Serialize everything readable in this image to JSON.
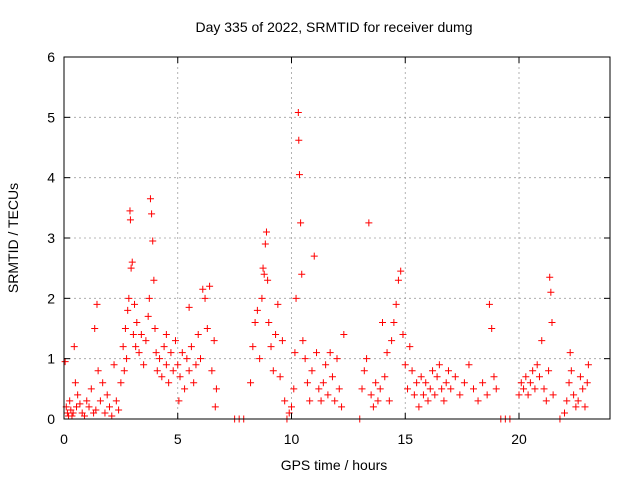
{
  "chart_data": {
    "type": "scatter",
    "title": "Day 335 of 2022, SRMTID for receiver dumg",
    "xlabel": "GPS time / hours",
    "ylabel": "SRMTID / TECUs",
    "xlim": [
      0,
      24
    ],
    "ylim": [
      0,
      6
    ],
    "xticks": [
      0,
      5,
      10,
      15,
      20
    ],
    "yticks": [
      0,
      1,
      2,
      3,
      4,
      5,
      6
    ],
    "grid": true,
    "marker": "+",
    "color": "#ff0000",
    "series": [
      {
        "name": "SRMTID",
        "points": [
          [
            0.05,
            0.95
          ],
          [
            0.1,
            0.2
          ],
          [
            0.15,
            0.1
          ],
          [
            0.2,
            0.05
          ],
          [
            0.25,
            0.3
          ],
          [
            0.3,
            0.15
          ],
          [
            0.35,
            0.05
          ],
          [
            0.4,
            0.1
          ],
          [
            0.45,
            1.2
          ],
          [
            0.5,
            0.6
          ],
          [
            0.55,
            0.2
          ],
          [
            0.6,
            0.4
          ],
          [
            0.7,
            0.25
          ],
          [
            0.8,
            0.1
          ],
          [
            0.9,
            0.05
          ],
          [
            1.0,
            0.3
          ],
          [
            1.1,
            0.2
          ],
          [
            1.2,
            0.5
          ],
          [
            1.3,
            0.1
          ],
          [
            1.4,
            0.15
          ],
          [
            1.5,
            0.8
          ],
          [
            1.6,
            0.3
          ],
          [
            1.7,
            0.6
          ],
          [
            1.8,
            0.1
          ],
          [
            1.9,
            0.4
          ],
          [
            2.0,
            0.2
          ],
          [
            2.1,
            0.05
          ],
          [
            2.2,
            0.9
          ],
          [
            2.3,
            0.3
          ],
          [
            2.4,
            0.15
          ],
          [
            2.5,
            0.6
          ],
          [
            1.35,
            1.5
          ],
          [
            1.45,
            1.9
          ],
          [
            2.6,
            1.2
          ],
          [
            2.65,
            0.8
          ],
          [
            2.7,
            1.5
          ],
          [
            2.75,
            1.0
          ],
          [
            2.8,
            1.8
          ],
          [
            2.85,
            2.0
          ],
          [
            2.9,
            3.45
          ],
          [
            2.92,
            3.3
          ],
          [
            2.95,
            2.5
          ],
          [
            3.0,
            2.6
          ],
          [
            3.05,
            1.4
          ],
          [
            3.1,
            1.9
          ],
          [
            3.15,
            1.2
          ],
          [
            3.2,
            1.6
          ],
          [
            3.3,
            1.1
          ],
          [
            3.4,
            1.4
          ],
          [
            3.5,
            0.9
          ],
          [
            3.6,
            1.3
          ],
          [
            3.7,
            1.7
          ],
          [
            3.75,
            2.0
          ],
          [
            3.8,
            3.65
          ],
          [
            3.85,
            3.4
          ],
          [
            3.9,
            2.95
          ],
          [
            3.95,
            2.3
          ],
          [
            4.0,
            1.5
          ],
          [
            4.05,
            1.1
          ],
          [
            4.1,
            0.8
          ],
          [
            4.2,
            1.0
          ],
          [
            4.3,
            0.7
          ],
          [
            4.4,
            1.2
          ],
          [
            4.5,
            0.9
          ],
          [
            4.6,
            0.6
          ],
          [
            4.7,
            1.1
          ],
          [
            4.8,
            0.8
          ],
          [
            4.9,
            1.3
          ],
          [
            5.0,
            0.9
          ],
          [
            5.1,
            0.7
          ],
          [
            5.2,
            1.1
          ],
          [
            5.3,
            0.5
          ],
          [
            5.4,
            1.0
          ],
          [
            5.5,
            0.8
          ],
          [
            5.6,
            1.2
          ],
          [
            5.7,
            0.6
          ],
          [
            5.8,
            0.9
          ],
          [
            5.9,
            1.4
          ],
          [
            6.0,
            1.0
          ],
          [
            6.1,
            2.15
          ],
          [
            6.2,
            2.0
          ],
          [
            6.3,
            1.5
          ],
          [
            6.4,
            2.2
          ],
          [
            6.5,
            0.8
          ],
          [
            6.6,
            1.3
          ],
          [
            6.65,
            0.2
          ],
          [
            6.7,
            0.5
          ],
          [
            5.5,
            1.85
          ],
          [
            4.5,
            1.4
          ],
          [
            5.05,
            0.3
          ],
          [
            7.5,
            0.0
          ],
          [
            7.7,
            0.0
          ],
          [
            7.9,
            0.0
          ],
          [
            8.2,
            0.6
          ],
          [
            8.3,
            1.2
          ],
          [
            8.4,
            1.6
          ],
          [
            8.5,
            1.8
          ],
          [
            8.6,
            1.0
          ],
          [
            8.7,
            2.0
          ],
          [
            8.75,
            2.5
          ],
          [
            8.8,
            2.4
          ],
          [
            8.85,
            2.9
          ],
          [
            8.9,
            3.1
          ],
          [
            8.95,
            2.3
          ],
          [
            9.0,
            1.6
          ],
          [
            9.1,
            1.2
          ],
          [
            9.2,
            0.8
          ],
          [
            9.3,
            1.4
          ],
          [
            9.4,
            1.9
          ],
          [
            9.5,
            0.7
          ],
          [
            9.6,
            1.3
          ],
          [
            9.7,
            0.3
          ],
          [
            9.8,
            0.0
          ],
          [
            9.9,
            0.1
          ],
          [
            10.0,
            0.2
          ],
          [
            10.1,
            0.5
          ],
          [
            10.15,
            1.1
          ],
          [
            10.2,
            2.0
          ],
          [
            10.3,
            5.08
          ],
          [
            10.32,
            4.62
          ],
          [
            10.35,
            4.05
          ],
          [
            10.4,
            3.25
          ],
          [
            10.45,
            2.4
          ],
          [
            10.5,
            1.3
          ],
          [
            10.6,
            1.0
          ],
          [
            10.7,
            0.6
          ],
          [
            10.8,
            0.3
          ],
          [
            10.9,
            0.8
          ],
          [
            11.0,
            2.7
          ],
          [
            11.1,
            1.1
          ],
          [
            11.2,
            0.5
          ],
          [
            11.3,
            0.3
          ],
          [
            11.4,
            0.6
          ],
          [
            11.5,
            0.9
          ],
          [
            11.6,
            0.4
          ],
          [
            11.7,
            1.1
          ],
          [
            11.8,
            0.7
          ],
          [
            11.9,
            0.3
          ],
          [
            12.0,
            1.0
          ],
          [
            12.1,
            0.5
          ],
          [
            12.2,
            0.2
          ],
          [
            12.3,
            1.4
          ],
          [
            13.0,
            0.0
          ],
          [
            13.1,
            0.5
          ],
          [
            13.2,
            0.8
          ],
          [
            13.3,
            1.0
          ],
          [
            13.4,
            3.25
          ],
          [
            13.5,
            0.4
          ],
          [
            13.6,
            0.2
          ],
          [
            13.7,
            0.6
          ],
          [
            13.8,
            0.3
          ],
          [
            13.9,
            0.5
          ],
          [
            14.0,
            1.6
          ],
          [
            14.1,
            0.7
          ],
          [
            14.2,
            1.1
          ],
          [
            14.3,
            0.3
          ],
          [
            14.4,
            1.3
          ],
          [
            14.5,
            1.6
          ],
          [
            14.6,
            1.9
          ],
          [
            14.7,
            2.3
          ],
          [
            14.8,
            2.45
          ],
          [
            14.9,
            1.4
          ],
          [
            15.0,
            0.9
          ],
          [
            15.1,
            0.5
          ],
          [
            15.2,
            1.2
          ],
          [
            15.3,
            0.8
          ],
          [
            15.4,
            0.4
          ],
          [
            15.5,
            0.6
          ],
          [
            15.6,
            0.2
          ],
          [
            15.7,
            0.7
          ],
          [
            15.8,
            0.4
          ],
          [
            15.9,
            0.6
          ],
          [
            16.0,
            0.3
          ],
          [
            16.1,
            0.5
          ],
          [
            16.2,
            0.8
          ],
          [
            16.3,
            0.4
          ],
          [
            16.4,
            0.7
          ],
          [
            16.5,
            0.9
          ],
          [
            16.6,
            0.5
          ],
          [
            16.7,
            0.3
          ],
          [
            16.8,
            0.6
          ],
          [
            16.9,
            0.8
          ],
          [
            17.0,
            0.5
          ],
          [
            17.2,
            0.7
          ],
          [
            17.4,
            0.4
          ],
          [
            17.6,
            0.6
          ],
          [
            17.8,
            0.9
          ],
          [
            18.0,
            0.5
          ],
          [
            18.2,
            0.3
          ],
          [
            18.4,
            0.6
          ],
          [
            18.6,
            0.4
          ],
          [
            18.7,
            1.9
          ],
          [
            18.8,
            1.5
          ],
          [
            18.9,
            0.7
          ],
          [
            19.0,
            0.5
          ],
          [
            19.2,
            0.0
          ],
          [
            19.4,
            0.0
          ],
          [
            19.6,
            0.0
          ],
          [
            20.0,
            0.4
          ],
          [
            20.1,
            0.6
          ],
          [
            20.2,
            0.5
          ],
          [
            20.3,
            0.7
          ],
          [
            20.4,
            0.4
          ],
          [
            20.5,
            0.6
          ],
          [
            20.6,
            0.8
          ],
          [
            20.7,
            0.5
          ],
          [
            20.8,
            0.9
          ],
          [
            20.9,
            0.7
          ],
          [
            21.0,
            1.3
          ],
          [
            21.1,
            0.5
          ],
          [
            21.2,
            0.3
          ],
          [
            21.3,
            0.8
          ],
          [
            21.35,
            2.35
          ],
          [
            21.4,
            2.1
          ],
          [
            21.45,
            1.6
          ],
          [
            21.5,
            0.4
          ],
          [
            21.8,
            0.0
          ],
          [
            22.0,
            0.1
          ],
          [
            22.1,
            0.3
          ],
          [
            22.2,
            0.6
          ],
          [
            22.25,
            1.1
          ],
          [
            22.3,
            0.8
          ],
          [
            22.4,
            0.4
          ],
          [
            22.5,
            0.2
          ],
          [
            22.6,
            0.3
          ],
          [
            22.7,
            0.7
          ],
          [
            22.8,
            0.5
          ],
          [
            22.9,
            0.2
          ],
          [
            23.0,
            0.6
          ],
          [
            23.05,
            0.9
          ]
        ]
      }
    ]
  }
}
